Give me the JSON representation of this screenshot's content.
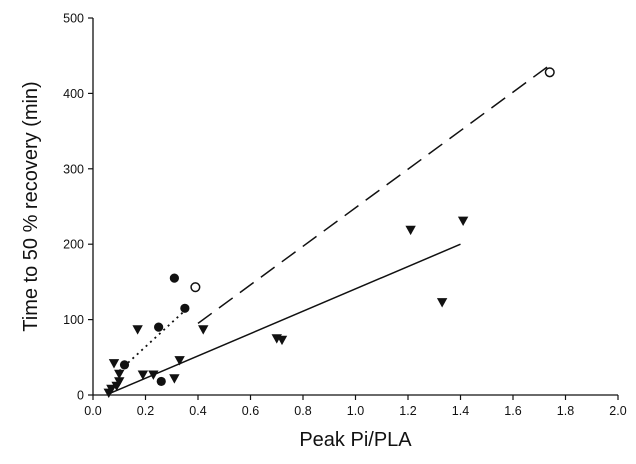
{
  "chart_data": {
    "type": "scatter",
    "title": "",
    "xlabel": "Peak Pi/PLA",
    "ylabel": "Time to 50 % recovery (min)",
    "xlim": [
      0.0,
      2.0
    ],
    "ylim": [
      0,
      500
    ],
    "x_ticks": [
      "0.0",
      "0.2",
      "0.4",
      "0.6",
      "0.8",
      "1.0",
      "1.2",
      "1.4",
      "1.6",
      "1.8",
      "2.0"
    ],
    "y_ticks": [
      "0",
      "100",
      "200",
      "300",
      "400",
      "500"
    ],
    "grid": false,
    "legend": "none",
    "series": [
      {
        "marker": "filled-circle",
        "color": "#111111",
        "points": [
          [
            0.12,
            40
          ],
          [
            0.25,
            90
          ],
          [
            0.26,
            18
          ],
          [
            0.31,
            155
          ],
          [
            0.35,
            115
          ]
        ]
      },
      {
        "marker": "open-circle",
        "color": "#111111",
        "points": [
          [
            0.39,
            143
          ],
          [
            1.74,
            428
          ]
        ]
      },
      {
        "marker": "filled-triangle-down",
        "color": "#111111",
        "points": [
          [
            0.06,
            3
          ],
          [
            0.07,
            8
          ],
          [
            0.08,
            42
          ],
          [
            0.09,
            12
          ],
          [
            0.1,
            28
          ],
          [
            0.1,
            18
          ],
          [
            0.17,
            87
          ],
          [
            0.19,
            27
          ],
          [
            0.23,
            27
          ],
          [
            0.31,
            22
          ],
          [
            0.33,
            46
          ],
          [
            0.42,
            87
          ],
          [
            0.7,
            75
          ],
          [
            0.72,
            73
          ],
          [
            1.21,
            219
          ],
          [
            1.33,
            123
          ],
          [
            1.41,
            231
          ]
        ]
      }
    ],
    "fit_lines": [
      {
        "style": "dotted",
        "from": [
          0.1,
          32
        ],
        "to": [
          0.35,
          112
        ]
      },
      {
        "style": "dashed",
        "from": [
          0.4,
          95
        ],
        "to": [
          1.75,
          440
        ]
      },
      {
        "style": "solid",
        "from": [
          0.07,
          3
        ],
        "to": [
          1.4,
          200
        ]
      }
    ]
  }
}
